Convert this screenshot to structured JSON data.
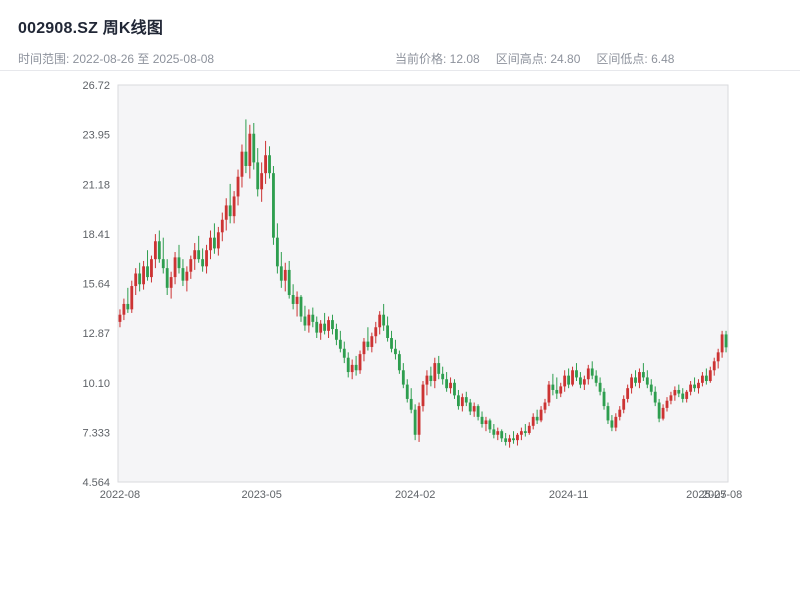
{
  "header": {
    "title": "002908.SZ 周K线图",
    "time_range": "时间范围: 2022-08-26 至 2025-08-08",
    "current_price_label": "当前价格: 12.08",
    "range_high_label": "区间高点: 24.80",
    "range_low_label": "区间低点: 6.48"
  },
  "chart_data": {
    "type": "candlestick",
    "title": "002908.SZ 周K线图",
    "frequency": "weekly",
    "current_price": 12.08,
    "range_high": 24.8,
    "range_low": 6.48,
    "ylim": [
      4.564,
      26.72
    ],
    "y_ticks": [
      "26.72",
      "23.95",
      "21.18",
      "18.41",
      "15.64",
      "12.87",
      "10.10",
      "7.333",
      "4.564"
    ],
    "x_ticks": [
      "2022-08",
      "2023-05",
      "2024-02",
      "2024-11",
      "2025-07",
      "2025-08"
    ],
    "up_color": "#cc3333",
    "down_color": "#2e9e4f",
    "background": "#f5f5f7",
    "border_color": "#d9dade",
    "legend": "red = up week, green = down week",
    "columns": [
      "date",
      "open",
      "high",
      "low",
      "close"
    ],
    "ohlc": [
      [
        "2022-08-26",
        13.5,
        14.2,
        13.2,
        13.9
      ],
      [
        "2022-09-02",
        13.9,
        14.8,
        13.6,
        14.5
      ],
      [
        "2022-09-09",
        14.5,
        15.4,
        14.0,
        14.2
      ],
      [
        "2022-09-16",
        14.2,
        15.8,
        14.0,
        15.5
      ],
      [
        "2022-09-23",
        15.5,
        16.5,
        15.0,
        16.2
      ],
      [
        "2022-09-30",
        16.2,
        16.8,
        15.2,
        15.6
      ],
      [
        "2022-10-07",
        15.6,
        16.9,
        15.3,
        16.6
      ],
      [
        "2022-10-14",
        16.6,
        17.5,
        15.8,
        16.0
      ],
      [
        "2022-10-21",
        16.0,
        17.2,
        15.7,
        17.0
      ],
      [
        "2022-10-28",
        17.0,
        18.4,
        16.5,
        18.0
      ],
      [
        "2022-11-04",
        18.0,
        18.6,
        16.8,
        17.0
      ],
      [
        "2022-11-11",
        17.0,
        18.2,
        16.2,
        16.5
      ],
      [
        "2022-11-18",
        16.5,
        17.0,
        15.0,
        15.4
      ],
      [
        "2022-11-25",
        15.4,
        16.3,
        14.8,
        16.0
      ],
      [
        "2022-12-02",
        16.0,
        17.4,
        15.6,
        17.1
      ],
      [
        "2022-12-09",
        17.1,
        17.8,
        16.2,
        16.5
      ],
      [
        "2022-12-16",
        16.5,
        17.0,
        15.5,
        15.8
      ],
      [
        "2022-12-23",
        15.8,
        16.6,
        15.2,
        16.3
      ],
      [
        "2022-12-30",
        16.3,
        17.2,
        15.9,
        17.0
      ],
      [
        "2023-01-06",
        17.0,
        17.9,
        16.4,
        17.5
      ],
      [
        "2023-01-13",
        17.5,
        18.3,
        16.8,
        17.0
      ],
      [
        "2023-01-20",
        17.0,
        17.6,
        16.3,
        16.6
      ],
      [
        "2023-01-27",
        16.6,
        17.8,
        16.2,
        17.5
      ],
      [
        "2023-02-03",
        17.5,
        18.6,
        17.0,
        18.2
      ],
      [
        "2023-02-10",
        18.2,
        19.0,
        17.3,
        17.6
      ],
      [
        "2023-02-17",
        17.6,
        18.8,
        17.2,
        18.5
      ],
      [
        "2023-02-24",
        18.5,
        19.6,
        18.0,
        19.2
      ],
      [
        "2023-03-03",
        19.2,
        20.4,
        18.6,
        20.0
      ],
      [
        "2023-03-10",
        20.0,
        21.2,
        19.0,
        19.4
      ],
      [
        "2023-03-17",
        19.4,
        20.8,
        19.0,
        20.5
      ],
      [
        "2023-03-24",
        20.5,
        22.0,
        20.0,
        21.6
      ],
      [
        "2023-03-31",
        21.6,
        23.4,
        21.0,
        23.0
      ],
      [
        "2023-04-07",
        23.0,
        24.8,
        21.8,
        22.2
      ],
      [
        "2023-04-14",
        22.2,
        24.5,
        21.5,
        24.0
      ],
      [
        "2023-04-21",
        24.0,
        24.6,
        22.0,
        22.4
      ],
      [
        "2023-04-28",
        22.4,
        23.2,
        20.5,
        20.9
      ],
      [
        "2023-05-05",
        20.9,
        22.4,
        20.2,
        21.8
      ],
      [
        "2023-05-12",
        21.8,
        23.6,
        21.2,
        22.8
      ],
      [
        "2023-05-19",
        22.8,
        23.3,
        21.5,
        21.8
      ],
      [
        "2023-05-26",
        21.8,
        22.2,
        17.8,
        18.2
      ],
      [
        "2023-06-02",
        18.2,
        19.0,
        16.2,
        16.6
      ],
      [
        "2023-06-09",
        16.6,
        17.4,
        15.4,
        15.8
      ],
      [
        "2023-06-16",
        15.8,
        16.8,
        15.2,
        16.4
      ],
      [
        "2023-06-23",
        16.4,
        16.9,
        14.8,
        15.0
      ],
      [
        "2023-06-30",
        15.0,
        15.6,
        14.2,
        14.5
      ],
      [
        "2023-07-07",
        14.5,
        15.2,
        13.8,
        14.9
      ],
      [
        "2023-07-14",
        14.9,
        15.0,
        13.5,
        13.8
      ],
      [
        "2023-07-21",
        13.8,
        14.4,
        13.0,
        13.3
      ],
      [
        "2023-07-28",
        13.3,
        14.2,
        12.9,
        13.9
      ],
      [
        "2023-08-04",
        13.9,
        14.3,
        13.2,
        13.5
      ],
      [
        "2023-08-11",
        13.5,
        13.8,
        12.6,
        12.9
      ],
      [
        "2023-08-18",
        12.9,
        13.6,
        12.5,
        13.4
      ],
      [
        "2023-08-25",
        13.4,
        14.0,
        12.8,
        13.0
      ],
      [
        "2023-09-01",
        13.0,
        13.8,
        12.6,
        13.6
      ],
      [
        "2023-09-08",
        13.6,
        13.9,
        12.8,
        13.1
      ],
      [
        "2023-09-15",
        13.1,
        13.4,
        12.2,
        12.5
      ],
      [
        "2023-09-22",
        12.5,
        13.0,
        11.8,
        12.0
      ],
      [
        "2023-09-29",
        12.0,
        12.4,
        11.2,
        11.5
      ],
      [
        "2023-10-06",
        11.5,
        11.8,
        10.4,
        10.7
      ],
      [
        "2023-10-13",
        10.7,
        11.4,
        10.3,
        11.1
      ],
      [
        "2023-10-20",
        11.1,
        11.6,
        10.5,
        10.8
      ],
      [
        "2023-10-27",
        10.8,
        11.9,
        10.6,
        11.7
      ],
      [
        "2023-11-03",
        11.7,
        12.6,
        11.3,
        12.4
      ],
      [
        "2023-11-10",
        12.4,
        13.2,
        11.9,
        12.1
      ],
      [
        "2023-11-17",
        12.1,
        12.9,
        11.8,
        12.7
      ],
      [
        "2023-11-24",
        12.7,
        13.5,
        12.3,
        13.2
      ],
      [
        "2023-12-01",
        13.2,
        14.1,
        12.8,
        13.9
      ],
      [
        "2023-12-08",
        13.9,
        14.5,
        13.0,
        13.3
      ],
      [
        "2023-12-15",
        13.3,
        13.8,
        12.4,
        12.6
      ],
      [
        "2023-12-22",
        12.6,
        13.0,
        11.8,
        12.0
      ],
      [
        "2023-12-29",
        12.0,
        12.5,
        11.4,
        11.7
      ],
      [
        "2024-01-05",
        11.7,
        11.9,
        10.6,
        10.8
      ],
      [
        "2024-01-12",
        10.8,
        11.2,
        9.8,
        10.0
      ],
      [
        "2024-01-19",
        10.0,
        10.3,
        9.0,
        9.2
      ],
      [
        "2024-01-26",
        9.2,
        9.8,
        8.4,
        8.6
      ],
      [
        "2024-02-02",
        8.6,
        8.9,
        6.9,
        7.2
      ],
      [
        "2024-02-09",
        7.2,
        9.0,
        6.8,
        8.8
      ],
      [
        "2024-02-16",
        8.8,
        10.2,
        8.5,
        10.0
      ],
      [
        "2024-02-23",
        10.0,
        10.8,
        9.4,
        10.5
      ],
      [
        "2024-03-01",
        10.5,
        11.0,
        9.9,
        10.2
      ],
      [
        "2024-03-08",
        10.2,
        11.5,
        9.8,
        11.2
      ],
      [
        "2024-03-15",
        11.2,
        11.6,
        10.3,
        10.6
      ],
      [
        "2024-03-22",
        10.6,
        11.0,
        10.0,
        10.3
      ],
      [
        "2024-03-29",
        10.3,
        10.7,
        9.6,
        9.8
      ],
      [
        "2024-04-05",
        9.8,
        10.4,
        9.5,
        10.1
      ],
      [
        "2024-04-12",
        10.1,
        10.3,
        9.2,
        9.4
      ],
      [
        "2024-04-19",
        9.4,
        9.7,
        8.6,
        8.8
      ],
      [
        "2024-04-26",
        8.8,
        9.5,
        8.5,
        9.3
      ],
      [
        "2024-05-03",
        9.3,
        9.6,
        8.8,
        9.0
      ],
      [
        "2024-05-10",
        9.0,
        9.2,
        8.3,
        8.5
      ],
      [
        "2024-05-17",
        8.5,
        9.0,
        8.2,
        8.8
      ],
      [
        "2024-05-24",
        8.8,
        8.9,
        8.0,
        8.2
      ],
      [
        "2024-05-31",
        8.2,
        8.5,
        7.6,
        7.8
      ],
      [
        "2024-06-07",
        7.8,
        8.2,
        7.4,
        8.0
      ],
      [
        "2024-06-14",
        8.0,
        8.1,
        7.3,
        7.5
      ],
      [
        "2024-06-21",
        7.5,
        7.8,
        7.0,
        7.2
      ],
      [
        "2024-06-28",
        7.2,
        7.6,
        6.9,
        7.4
      ],
      [
        "2024-07-05",
        7.4,
        7.5,
        6.8,
        7.0
      ],
      [
        "2024-07-12",
        7.0,
        7.3,
        6.6,
        6.8
      ],
      [
        "2024-07-19",
        6.8,
        7.2,
        6.48,
        7.0
      ],
      [
        "2024-07-26",
        7.0,
        7.4,
        6.7,
        6.9
      ],
      [
        "2024-08-02",
        6.9,
        7.3,
        6.6,
        7.2
      ],
      [
        "2024-08-09",
        7.2,
        7.6,
        6.9,
        7.4
      ],
      [
        "2024-08-16",
        7.4,
        7.8,
        7.1,
        7.3
      ],
      [
        "2024-08-23",
        7.3,
        7.9,
        7.2,
        7.7
      ],
      [
        "2024-08-30",
        7.7,
        8.4,
        7.5,
        8.2
      ],
      [
        "2024-09-06",
        8.2,
        8.6,
        7.8,
        8.0
      ],
      [
        "2024-09-13",
        8.0,
        8.8,
        7.9,
        8.6
      ],
      [
        "2024-09-20",
        8.6,
        9.2,
        8.4,
        9.0
      ],
      [
        "2024-09-27",
        9.0,
        10.2,
        8.8,
        10.0
      ],
      [
        "2024-10-04",
        10.0,
        10.6,
        9.4,
        9.7
      ],
      [
        "2024-10-11",
        9.7,
        10.4,
        9.2,
        9.5
      ],
      [
        "2024-10-18",
        9.5,
        10.1,
        9.3,
        9.9
      ],
      [
        "2024-10-25",
        9.9,
        10.8,
        9.6,
        10.5
      ],
      [
        "2024-11-01",
        10.5,
        10.9,
        9.8,
        10.0
      ],
      [
        "2024-11-08",
        10.0,
        11.0,
        9.9,
        10.8
      ],
      [
        "2024-11-15",
        10.8,
        11.2,
        10.2,
        10.4
      ],
      [
        "2024-11-22",
        10.4,
        10.7,
        9.8,
        10.0
      ],
      [
        "2024-11-29",
        10.0,
        10.5,
        9.7,
        10.3
      ],
      [
        "2024-12-06",
        10.3,
        11.1,
        10.0,
        10.9
      ],
      [
        "2024-12-13",
        10.9,
        11.3,
        10.3,
        10.5
      ],
      [
        "2024-12-20",
        10.5,
        10.8,
        9.9,
        10.1
      ],
      [
        "2024-12-27",
        10.1,
        10.4,
        9.4,
        9.6
      ],
      [
        "2025-01-03",
        9.6,
        9.8,
        8.6,
        8.8
      ],
      [
        "2025-01-10",
        8.8,
        9.0,
        7.8,
        8.0
      ],
      [
        "2025-01-17",
        8.0,
        8.3,
        7.4,
        7.6
      ],
      [
        "2025-01-24",
        7.6,
        8.4,
        7.4,
        8.2
      ],
      [
        "2025-01-31",
        8.2,
        8.8,
        8.0,
        8.6
      ],
      [
        "2025-02-07",
        8.6,
        9.4,
        8.4,
        9.2
      ],
      [
        "2025-02-14",
        9.2,
        10.0,
        9.0,
        9.8
      ],
      [
        "2025-02-21",
        9.8,
        10.6,
        9.5,
        10.4
      ],
      [
        "2025-02-28",
        10.4,
        10.8,
        9.9,
        10.1
      ],
      [
        "2025-03-07",
        10.1,
        10.9,
        9.8,
        10.7
      ],
      [
        "2025-03-14",
        10.7,
        11.2,
        10.2,
        10.4
      ],
      [
        "2025-03-21",
        10.4,
        10.8,
        9.8,
        10.0
      ],
      [
        "2025-03-28",
        10.0,
        10.3,
        9.4,
        9.6
      ],
      [
        "2025-04-04",
        9.6,
        9.9,
        8.8,
        9.0
      ],
      [
        "2025-04-11",
        9.0,
        9.2,
        7.9,
        8.1
      ],
      [
        "2025-04-18",
        8.1,
        8.9,
        8.0,
        8.7
      ],
      [
        "2025-04-25",
        8.7,
        9.3,
        8.5,
        9.1
      ],
      [
        "2025-05-02",
        9.1,
        9.6,
        8.9,
        9.4
      ],
      [
        "2025-05-09",
        9.4,
        9.9,
        9.1,
        9.7
      ],
      [
        "2025-05-16",
        9.7,
        10.0,
        9.3,
        9.5
      ],
      [
        "2025-05-23",
        9.5,
        9.8,
        9.0,
        9.2
      ],
      [
        "2025-05-30",
        9.2,
        9.7,
        9.0,
        9.6
      ],
      [
        "2025-06-06",
        9.6,
        10.2,
        9.4,
        10.0
      ],
      [
        "2025-06-13",
        10.0,
        10.4,
        9.6,
        9.8
      ],
      [
        "2025-06-20",
        9.8,
        10.3,
        9.5,
        10.1
      ],
      [
        "2025-06-27",
        10.1,
        10.7,
        9.9,
        10.5
      ],
      [
        "2025-07-04",
        10.5,
        10.9,
        10.0,
        10.2
      ],
      [
        "2025-07-11",
        10.2,
        11.0,
        10.1,
        10.8
      ],
      [
        "2025-07-18",
        10.8,
        11.5,
        10.5,
        11.3
      ],
      [
        "2025-07-25",
        11.3,
        12.0,
        10.9,
        11.8
      ],
      [
        "2025-08-01",
        11.8,
        13.0,
        11.5,
        12.8
      ],
      [
        "2025-08-08",
        12.8,
        13.0,
        11.8,
        12.08
      ]
    ]
  }
}
